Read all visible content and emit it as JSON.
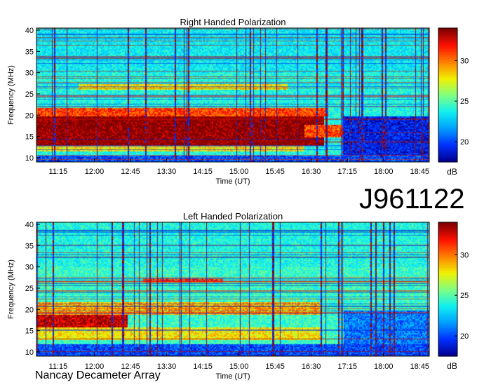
{
  "observation_id": "J961122",
  "footer": "Nancay Decameter Array",
  "colormap": [
    "#00008f",
    "#0030ff",
    "#00a0ff",
    "#10f0f0",
    "#80ff80",
    "#f0f000",
    "#ff8000",
    "#ff1000",
    "#800000"
  ],
  "chart_data": [
    {
      "type": "heatmap",
      "title": "Right Handed Polarization",
      "xlabel": "Time (UT)",
      "ylabel": "Frequency (MHz)",
      "x_tick_labels": [
        "11:15",
        "12:00",
        "12:45",
        "13:30",
        "14:15",
        "15:00",
        "15:45",
        "16:30",
        "17:15",
        "18:00",
        "18:45"
      ],
      "x_ticks_min": [
        675,
        720,
        765,
        810,
        855,
        900,
        945,
        990,
        1035,
        1080,
        1125
      ],
      "xlim_min": [
        648,
        1137
      ],
      "y_ticks": [
        10,
        15,
        20,
        25,
        30,
        35,
        40
      ],
      "ylim": [
        9,
        40.5
      ],
      "colorbar": {
        "label": "dB",
        "ticks": [
          20,
          25,
          30
        ],
        "range": [
          17.5,
          34
        ]
      },
      "background_db": 24,
      "emission_bands": [
        {
          "t_start": 648,
          "t_end": 1005,
          "f_low": 13,
          "f_high": 20,
          "db": 34
        },
        {
          "t_start": 648,
          "t_end": 1010,
          "f_low": 20,
          "f_high": 22,
          "db": 31
        },
        {
          "t_start": 648,
          "t_end": 980,
          "f_low": 11.5,
          "f_high": 13,
          "db": 28
        },
        {
          "t_start": 980,
          "t_end": 1030,
          "f_low": 15,
          "f_high": 18,
          "db": 31
        },
        {
          "t_start": 700,
          "t_end": 960,
          "f_low": 26,
          "f_high": 27.5,
          "db": 28
        },
        {
          "t_start": 1030,
          "t_end": 1137,
          "f_low": 10,
          "f_high": 20,
          "db": 19
        },
        {
          "t_start": 648,
          "t_end": 1137,
          "f_low": 9,
          "f_high": 10.5,
          "db": 20
        }
      ]
    },
    {
      "type": "heatmap",
      "title": "Left Handed Polarization",
      "xlabel": "Time (UT)",
      "ylabel": "Frequency (MHz)",
      "x_tick_labels": [
        "11:15",
        "12:00",
        "12:45",
        "13:30",
        "14:15",
        "15:00",
        "15:45",
        "16:30",
        "17:15",
        "18:00",
        "18:45"
      ],
      "x_ticks_min": [
        675,
        720,
        765,
        810,
        855,
        900,
        945,
        990,
        1035,
        1080,
        1125
      ],
      "xlim_min": [
        648,
        1137
      ],
      "y_ticks": [
        10,
        15,
        20,
        25,
        30,
        35,
        40
      ],
      "ylim": [
        9,
        40.5
      ],
      "colorbar": {
        "label": "dB",
        "ticks": [
          20,
          25,
          30
        ],
        "range": [
          17.5,
          34
        ]
      },
      "background_db": 24.5,
      "emission_bands": [
        {
          "t_start": 648,
          "t_end": 760,
          "f_low": 16,
          "f_high": 19,
          "db": 33
        },
        {
          "t_start": 648,
          "t_end": 1000,
          "f_low": 19,
          "f_high": 22,
          "db": 29
        },
        {
          "t_start": 648,
          "t_end": 1000,
          "f_low": 13,
          "f_high": 16,
          "db": 28
        },
        {
          "t_start": 780,
          "t_end": 880,
          "f_low": 26.5,
          "f_high": 27.5,
          "db": 31
        },
        {
          "t_start": 648,
          "t_end": 1137,
          "f_low": 9,
          "f_high": 12,
          "db": 20
        },
        {
          "t_start": 1030,
          "t_end": 1137,
          "f_low": 12,
          "f_high": 20,
          "db": 21
        }
      ]
    }
  ]
}
